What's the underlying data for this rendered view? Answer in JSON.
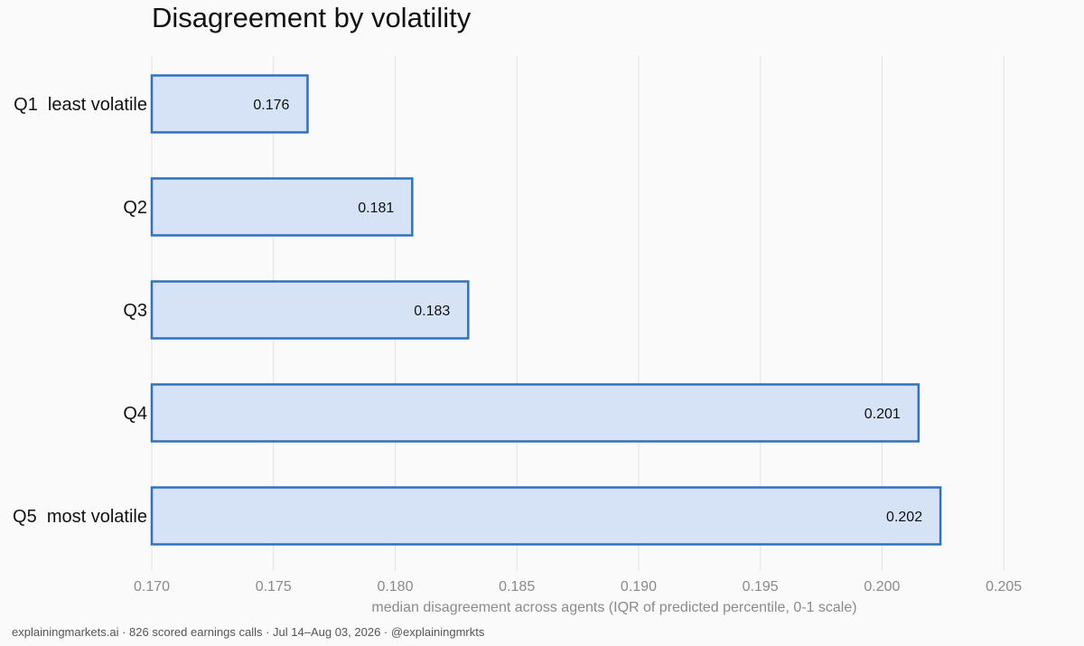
{
  "chart_data": {
    "type": "bar",
    "orientation": "horizontal",
    "title": "Disagreement by volatility",
    "xlabel": "median disagreement across agents (IQR of predicted percentile, 0-1 scale)",
    "ylabel": "",
    "categories": [
      "Q1  least volatile",
      "Q2",
      "Q3",
      "Q4",
      "Q5  most volatile"
    ],
    "values": [
      0.1764,
      0.1807,
      0.183,
      0.2015,
      0.2024
    ],
    "data_labels": [
      "0.176",
      "0.181",
      "0.183",
      "0.201",
      "0.202"
    ],
    "xlim": [
      0.17,
      0.208
    ],
    "xticks": [
      "0.170",
      "0.175",
      "0.180",
      "0.185",
      "0.190",
      "0.195",
      "0.200",
      "0.205"
    ],
    "grid": "vertical",
    "colors": {
      "bar_fill": "#d6e2f6",
      "bar_stroke": "#2f73bd",
      "grid": "#e2e2e2",
      "tick_text": "#8a8a8a"
    }
  },
  "footer": {
    "text": "explainingmarkets.ai  ·  826 scored earnings calls  ·  Jul 14–Aug 03, 2026  ·  @explainingmrkts"
  }
}
